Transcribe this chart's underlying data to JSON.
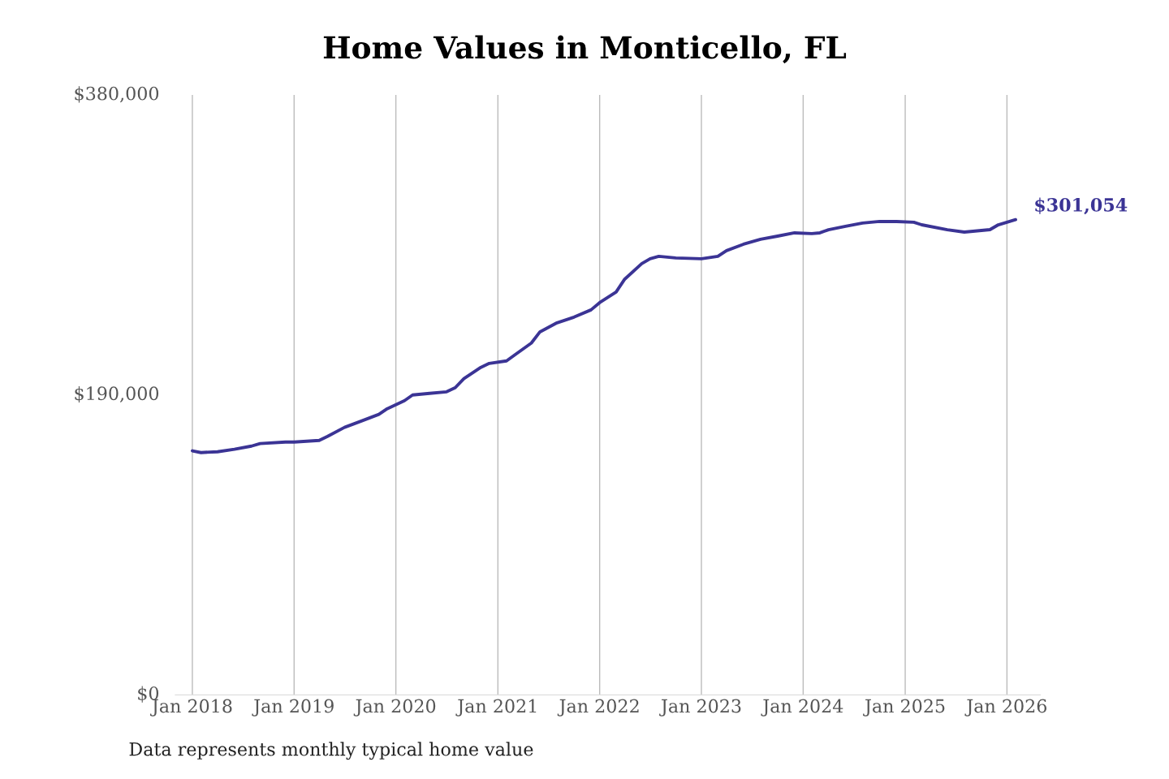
{
  "chart_data": {
    "type": "line",
    "title": "Home Values in Monticello, FL",
    "x": [
      "2018-01",
      "2018-02",
      "2018-04",
      "2018-06",
      "2018-08",
      "2018-09",
      "2018-12",
      "2019-01",
      "2019-04",
      "2019-05",
      "2019-07",
      "2019-09",
      "2019-11",
      "2019-12",
      "2020-02",
      "2020-03",
      "2020-05",
      "2020-07",
      "2020-08",
      "2020-09",
      "2020-11",
      "2020-12",
      "2021-02",
      "2021-03",
      "2021-05",
      "2021-06",
      "2021-08",
      "2021-10",
      "2021-12",
      "2022-01",
      "2022-03",
      "2022-04",
      "2022-06",
      "2022-07",
      "2022-08",
      "2022-10",
      "2023-01",
      "2023-03",
      "2023-04",
      "2023-06",
      "2023-08",
      "2023-10",
      "2023-12",
      "2024-02",
      "2024-03",
      "2024-04",
      "2024-06",
      "2024-08",
      "2024-10",
      "2024-12",
      "2025-02",
      "2025-03",
      "2025-06",
      "2025-08",
      "2025-09",
      "2025-11",
      "2025-12",
      "2026-02"
    ],
    "series": [
      {
        "color": "#3b3495",
        "values": [
          154600,
          153500,
          154000,
          155600,
          157600,
          159200,
          160200,
          160200,
          161200,
          163800,
          169500,
          173600,
          177700,
          181300,
          186400,
          190000,
          191000,
          192000,
          194600,
          200300,
          207500,
          210000,
          211600,
          215200,
          222900,
          230000,
          235700,
          239300,
          243900,
          248500,
          255200,
          263400,
          273200,
          276300,
          277800,
          276800,
          276300,
          277800,
          281400,
          285500,
          288600,
          290600,
          292700,
          292200,
          292700,
          294700,
          296800,
          298900,
          299900,
          299900,
          299400,
          297800,
          294700,
          293200,
          293700,
          294700,
          297800,
          301054
        ]
      }
    ],
    "xticks": [
      {
        "value": "2018-01",
        "label": "Jan 2018"
      },
      {
        "value": "2019-01",
        "label": "Jan 2019"
      },
      {
        "value": "2020-01",
        "label": "Jan 2020"
      },
      {
        "value": "2021-01",
        "label": "Jan 2021"
      },
      {
        "value": "2022-01",
        "label": "Jan 2022"
      },
      {
        "value": "2023-01",
        "label": "Jan 2023"
      },
      {
        "value": "2024-01",
        "label": "Jan 2024"
      },
      {
        "value": "2025-01",
        "label": "Jan 2025"
      },
      {
        "value": "2026-01",
        "label": "Jan 2026"
      }
    ],
    "xlim": [
      "2017-11",
      "2026-05"
    ],
    "ylim": [
      0,
      380000
    ],
    "yticks": [
      {
        "value": 0,
        "label": "$0"
      },
      {
        "value": 190000,
        "label": "$190,000"
      },
      {
        "value": 380000,
        "label": "$380,000"
      }
    ],
    "grid": "x",
    "annotations": [
      {
        "text": "$301,054",
        "x": "2026-02",
        "y": 301054
      },
      "Data represents monthly typical home value"
    ]
  }
}
